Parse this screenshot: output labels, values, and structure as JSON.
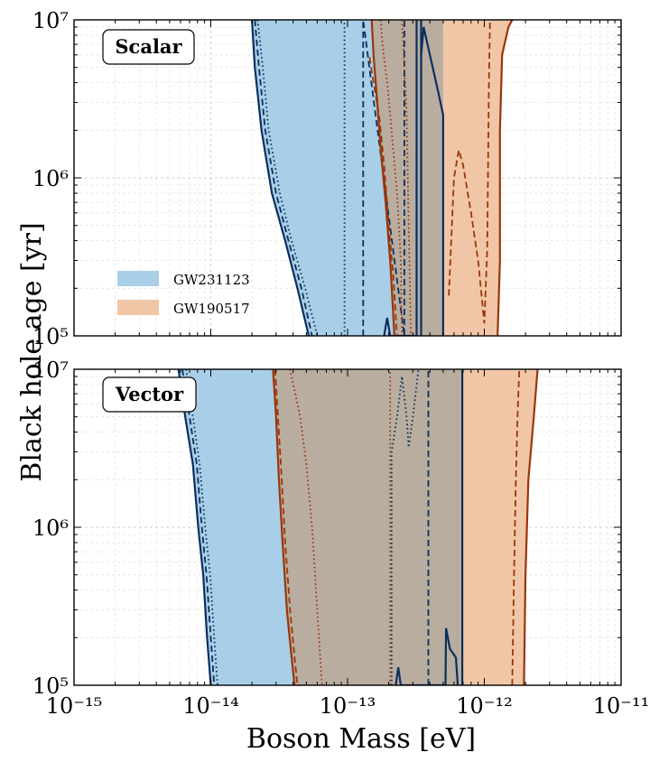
{
  "figure": {
    "ylabel": "Black hole age [yr]",
    "xlabel": "Boson Mass [eV]",
    "legend": [
      {
        "label": "GW231123",
        "color": "#a9cfe8"
      },
      {
        "label": "GW190517",
        "color": "#f1c6a6"
      }
    ]
  },
  "colors": {
    "blue_fill": "#a9cfe8",
    "orange_fill": "#f1c6a6",
    "overlap_fill": "#b9ada0",
    "blue_line": "#0b2f5e",
    "orange_line": "#9a3609"
  },
  "chart_data": [
    {
      "type": "area",
      "panel_label": "Scalar",
      "xscale": "log",
      "yscale": "log",
      "xlim": [
        1e-15,
        1e-11
      ],
      "ylim": [
        100000,
        10000000
      ],
      "xticks": [
        "10⁻¹⁵",
        "10⁻¹⁴",
        "10⁻¹³",
        "10⁻¹²",
        "10⁻¹¹"
      ],
      "yticks": [
        "10⁵",
        "10⁶",
        "10⁷"
      ],
      "grid": true,
      "legend_placement": "lower-left",
      "series": [
        {
          "name": "GW231123",
          "color": "#0b2f5e",
          "fill": "#a9cfe8",
          "lower_boundary": {
            "solid": [
              [
                2e-14,
                10000000.0
              ],
              [
                2.1e-14,
                5000000.0
              ],
              [
                2.35e-14,
                2000000.0
              ],
              [
                2.8e-14,
                800000.0
              ],
              [
                3.5e-14,
                400000.0
              ],
              [
                4.3e-14,
                200000.0
              ],
              [
                5.2e-14,
                100000.0
              ]
            ],
            "dashed": [
              [
                2.1e-14,
                10000000.0
              ],
              [
                2.25e-14,
                5000000.0
              ],
              [
                2.5e-14,
                2000000.0
              ],
              [
                3e-14,
                800000.0
              ],
              [
                3.7e-14,
                400000.0
              ],
              [
                4.6e-14,
                200000.0
              ],
              [
                5.5e-14,
                100000.0
              ]
            ],
            "dotted": [
              [
                2.2e-14,
                10000000.0
              ],
              [
                2.4e-14,
                5000000.0
              ],
              [
                2.65e-14,
                2000000.0
              ],
              [
                3.2e-14,
                800000.0
              ],
              [
                3.9e-14,
                400000.0
              ],
              [
                4.9e-14,
                200000.0
              ],
              [
                6e-14,
                100000.0
              ]
            ]
          },
          "upper_boundary": {
            "solid": [
              [
                1.85e-13,
                100000.0
              ],
              [
                1.95e-13,
                130000.0
              ],
              [
                2.05e-13,
                100000.0
              ],
              [
                3.2e-13,
                100000.0
              ],
              [
                3.2e-13,
                10000000.0
              ]
            ],
            "dashed": [
              [
                1.3e-13,
                100000.0
              ],
              [
                1.3e-13,
                10000000.0
              ],
              [
                2.6e-13,
                100000.0
              ],
              [
                2.6e-13,
                10000000.0
              ]
            ],
            "dotted": [
              [
                9.5e-14,
                100000.0
              ],
              [
                9.5e-14,
                10000000.0
              ]
            ]
          },
          "right_edge_solid": [
            [
              3.45e-13,
              100000.0
            ],
            [
              3.45e-13,
              10000000.0
            ]
          ],
          "right_edge_spike": [
            [
              3.45e-13,
              6000000.0
            ],
            [
              3.6e-13,
              9000000.0
            ],
            [
              4e-13,
              6000000.0
            ],
            [
              4.6e-13,
              3500000.0
            ],
            [
              5e-13,
              2500000.0
            ],
            [
              5e-13,
              100000.0
            ]
          ]
        },
        {
          "name": "GW190517",
          "color": "#9a3609",
          "fill": "#f1c6a6",
          "lower_boundary": {
            "solid": [
              [
                1.5e-13,
                10000000.0
              ],
              [
                1.55e-13,
                6000000.0
              ],
              [
                1.65e-13,
                3000000.0
              ],
              [
                1.75e-13,
                1500000.0
              ],
              [
                1.9e-13,
                700000.0
              ],
              [
                2.05e-13,
                300000.0
              ],
              [
                2.2e-13,
                100000.0
              ]
            ],
            "dashed": [
              [
                1.45e-13,
                5800000.0
              ],
              [
                1.55e-13,
                4000000.0
              ],
              [
                1.7e-13,
                2500000.0
              ],
              [
                1.85e-13,
                1200000.0
              ],
              [
                2e-13,
                500000.0
              ],
              [
                2.15e-13,
                250000.0
              ],
              [
                2.3e-13,
                100000.0
              ]
            ],
            "dotted": [
              [
                1.75e-13,
                10000000.0
              ],
              [
                1.8e-13,
                7000000.0
              ],
              [
                1.95e-13,
                4000000.0
              ],
              [
                2.1e-13,
                2000000.0
              ],
              [
                2.3e-13,
                800000.0
              ],
              [
                2.45e-13,
                300000.0
              ],
              [
                2.5e-13,
                100000.0
              ]
            ]
          },
          "upper_boundary": {
            "solid": [
              [
                1.25e-12,
                100000.0
              ],
              [
                1.3e-12,
                300000.0
              ],
              [
                1.3e-12,
                2000000.0
              ],
              [
                1.35e-12,
                6000000.0
              ],
              [
                1.5e-12,
                9000000.0
              ],
              [
                1.6e-12,
                10000000.0
              ]
            ],
            "dashed": [
              [
                5.5e-13,
                180000.0
              ],
              [
                6e-13,
                1000000.0
              ],
              [
                6.5e-13,
                1500000.0
              ],
              [
                7e-13,
                1200000.0
              ],
              [
                8e-13,
                600000.0
              ],
              [
                9e-13,
                300000.0
              ],
              [
                1e-12,
                120000.0
              ],
              [
                1.05e-12,
                350000.0
              ],
              [
                1.08e-12,
                4000000.0
              ],
              [
                1.1e-12,
                10000000.0
              ]
            ],
            "dotted": [
              [
                2.5e-13,
                10000000.0
              ],
              [
                2.6e-13,
                5000000.0
              ],
              [
                2.7e-13,
                2500000.0
              ],
              [
                2.9e-13,
                100000.0
              ]
            ]
          }
        }
      ]
    },
    {
      "type": "area",
      "panel_label": "Vector",
      "xscale": "log",
      "yscale": "log",
      "xlim": [
        1e-15,
        1e-11
      ],
      "ylim": [
        100000,
        10000000
      ],
      "xticks": [
        "10⁻¹⁵",
        "10⁻¹⁴",
        "10⁻¹³",
        "10⁻¹²",
        "10⁻¹¹"
      ],
      "yticks": [
        "10⁵",
        "10⁶",
        "10⁷"
      ],
      "grid": true,
      "series": [
        {
          "name": "GW231123",
          "color": "#0b2f5e",
          "fill": "#a9cfe8",
          "lower_boundary": {
            "solid": [
              [
                5.8e-15,
                10000000.0
              ],
              [
                6.5e-15,
                5000000.0
              ],
              [
                7.4e-15,
                2500000.0
              ],
              [
                8.1e-15,
                1000000.0
              ],
              [
                8.8e-15,
                500000.0
              ],
              [
                9.4e-15,
                200000.0
              ],
              [
                1e-14,
                100000.0
              ]
            ],
            "dashed": [
              [
                6.2e-15,
                10000000.0
              ],
              [
                7e-15,
                5000000.0
              ],
              [
                7.9e-15,
                2500000.0
              ],
              [
                8.6e-15,
                1000000.0
              ],
              [
                9.3e-15,
                500000.0
              ],
              [
                1e-14,
                200000.0
              ],
              [
                1.06e-14,
                100000.0
              ]
            ],
            "dotted": [
              [
                6.6e-15,
                10000000.0
              ],
              [
                7.4e-15,
                5000000.0
              ],
              [
                8.3e-15,
                2500000.0
              ],
              [
                9.1e-15,
                1000000.0
              ],
              [
                9.9e-15,
                500000.0
              ],
              [
                1.06e-14,
                200000.0
              ],
              [
                1.12e-14,
                100000.0
              ]
            ]
          },
          "upper_boundary": {
            "solid": [
              [
                2.25e-13,
                100000.0
              ],
              [
                2.35e-13,
                130000.0
              ],
              [
                2.45e-13,
                100000.0
              ],
              [
                5.2e-13,
                100000.0
              ],
              [
                5.25e-13,
                230000.0
              ],
              [
                5.6e-13,
                170000.0
              ],
              [
                6.2e-13,
                150000.0
              ],
              [
                6.4e-13,
                100000.0
              ]
            ],
            "dashed": [
              [
                3.9e-13,
                100000.0
              ],
              [
                3.9e-13,
                10000000.0
              ]
            ],
            "dotted": [
              [
                2.1e-13,
                100000.0
              ],
              [
                2.1e-13,
                3000000.0
              ],
              [
                2.3e-13,
                5000000.0
              ],
              [
                2.5e-13,
                9000000.0
              ],
              [
                2.7e-13,
                5000000.0
              ],
              [
                2.8e-13,
                3200000.0
              ],
              [
                3e-13,
                5000000.0
              ],
              [
                3.3e-13,
                10000000.0
              ]
            ]
          },
          "right_edge_solid": [
            [
              6.9e-13,
              100000.0
            ],
            [
              6.9e-13,
              10000000.0
            ]
          ]
        },
        {
          "name": "GW190517",
          "color": "#9a3609",
          "fill": "#f1c6a6",
          "lower_boundary": {
            "solid": [
              [
                2.85e-14,
                10000000.0
              ],
              [
                3e-14,
                5000000.0
              ],
              [
                3.15e-14,
                2000000.0
              ],
              [
                3.35e-14,
                800000.0
              ],
              [
                3.6e-14,
                300000.0
              ],
              [
                3.9e-14,
                150000.0
              ],
              [
                4.1e-14,
                100000.0
              ]
            ],
            "dashed": [
              [
                2.95e-14,
                10000000.0
              ],
              [
                3.1e-14,
                5000000.0
              ],
              [
                3.3e-14,
                2000000.0
              ],
              [
                3.5e-14,
                800000.0
              ],
              [
                3.8e-14,
                300000.0
              ],
              [
                4.1e-14,
                150000.0
              ],
              [
                4.3e-14,
                100000.0
              ]
            ],
            "dotted": [
              [
                3.8e-14,
                10000000.0
              ],
              [
                4.5e-14,
                5000000.0
              ],
              [
                5e-14,
                2500000.0
              ],
              [
                5.5e-14,
                1000000.0
              ],
              [
                6e-14,
                300000.0
              ],
              [
                6.5e-14,
                100000.0
              ]
            ]
          },
          "upper_boundary": {
            "solid": [
              [
                1.95e-12,
                100000.0
              ],
              [
                2e-12,
                500000.0
              ],
              [
                2.1e-12,
                2000000.0
              ],
              [
                2.3e-12,
                5000000.0
              ],
              [
                2.45e-12,
                10000000.0
              ]
            ],
            "dashed": [
              [
                1.6e-12,
                100000.0
              ],
              [
                1.65e-12,
                500000.0
              ],
              [
                1.7e-12,
                2000000.0
              ],
              [
                1.75e-12,
                5000000.0
              ],
              [
                1.8e-12,
                10000000.0
              ]
            ],
            "dotted": [
              [
                2.05e-13,
                100000.0
              ],
              [
                2.05e-13,
                10000000.0
              ]
            ]
          }
        }
      ]
    }
  ]
}
